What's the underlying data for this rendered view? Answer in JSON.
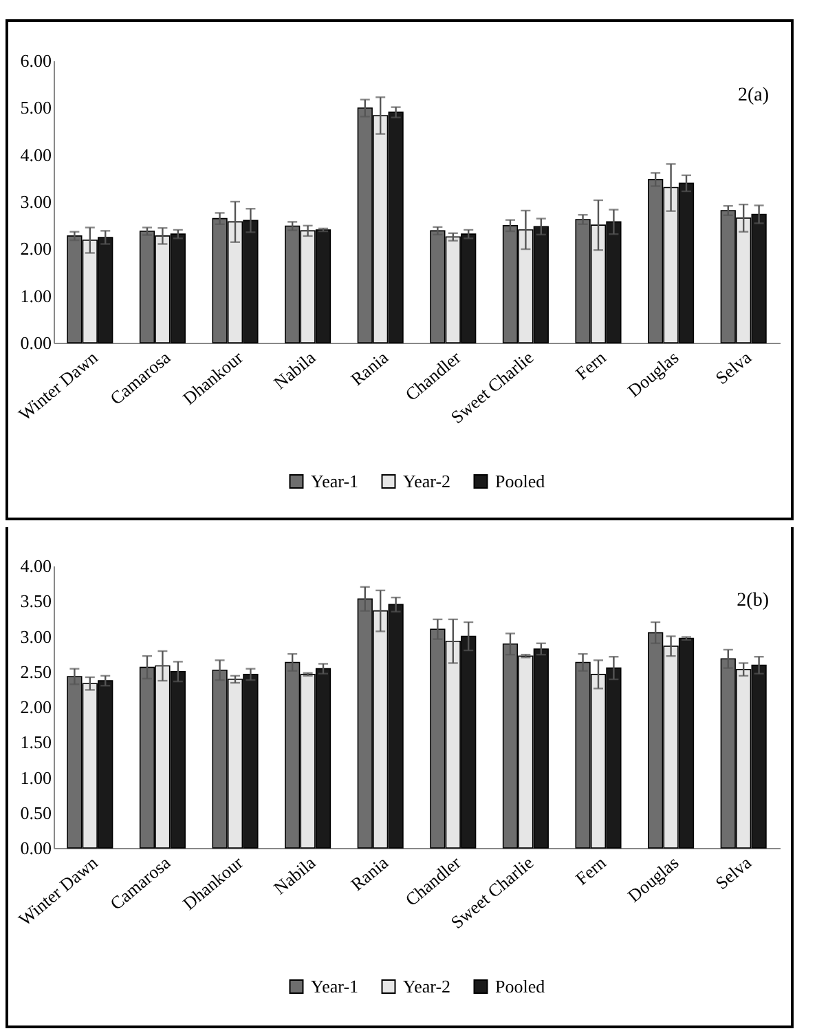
{
  "chart_data": [
    {
      "type": "bar",
      "annotations": [
        "2(a)"
      ],
      "categories": [
        "Winter Dawn",
        "Camarosa",
        "Dhankour",
        "Nabila",
        "Rania",
        "Chandler",
        "Sweet Charlie",
        "Fern",
        "Douglas",
        "Selva"
      ],
      "series": [
        {
          "name": "Year-1",
          "color": "#6e6e6e",
          "values": [
            2.27,
            2.37,
            2.64,
            2.48,
            4.99,
            2.38,
            2.49,
            2.62,
            3.47,
            2.81
          ],
          "errors": [
            0.09,
            0.08,
            0.12,
            0.09,
            0.18,
            0.08,
            0.12,
            0.1,
            0.14,
            0.1
          ]
        },
        {
          "name": "Year-2",
          "color": "#e6e6e6",
          "values": [
            2.18,
            2.27,
            2.57,
            2.38,
            4.83,
            2.25,
            2.4,
            2.5,
            3.3,
            2.65
          ],
          "errors": [
            0.27,
            0.17,
            0.43,
            0.11,
            0.39,
            0.08,
            0.41,
            0.53,
            0.5,
            0.29
          ]
        },
        {
          "name": "Pooled",
          "color": "#1a1a1a",
          "values": [
            2.24,
            2.31,
            2.6,
            2.4,
            4.9,
            2.31,
            2.47,
            2.57,
            3.39,
            2.73
          ],
          "errors": [
            0.14,
            0.09,
            0.25,
            0.03,
            0.11,
            0.09,
            0.17,
            0.26,
            0.17,
            0.19
          ]
        }
      ],
      "ylim": [
        0,
        6
      ],
      "yticks": [
        {
          "value": 0,
          "label": "0.00"
        },
        {
          "value": 1,
          "label": "1.00"
        },
        {
          "value": 2,
          "label": "2.00"
        },
        {
          "value": 3,
          "label": "3.00"
        },
        {
          "value": 4,
          "label": "4.00"
        },
        {
          "value": 5,
          "label": "5.00"
        },
        {
          "value": 6,
          "label": "6.00"
        }
      ],
      "legend": "bottom"
    },
    {
      "type": "bar",
      "annotations": [
        "2(b)"
      ],
      "categories": [
        "Winter Dawn",
        "Camarosa",
        "Dhankour",
        "Nabila",
        "Rania",
        "Chandler",
        "Sweet Charlie",
        "Fern",
        "Douglas",
        "Selva"
      ],
      "series": [
        {
          "name": "Year-1",
          "color": "#6e6e6e",
          "values": [
            2.43,
            2.56,
            2.52,
            2.63,
            3.53,
            3.1,
            2.89,
            2.63,
            3.05,
            2.68
          ],
          "errors": [
            0.11,
            0.16,
            0.14,
            0.12,
            0.17,
            0.14,
            0.15,
            0.12,
            0.15,
            0.13
          ]
        },
        {
          "name": "Year-2",
          "color": "#e6e6e6",
          "values": [
            2.33,
            2.58,
            2.39,
            2.46,
            3.36,
            2.93,
            2.72,
            2.46,
            2.86,
            2.53
          ],
          "errors": [
            0.09,
            0.21,
            0.05,
            0.02,
            0.29,
            0.31,
            0.02,
            0.2,
            0.14,
            0.09
          ]
        },
        {
          "name": "Pooled",
          "color": "#1a1a1a",
          "values": [
            2.37,
            2.5,
            2.46,
            2.54,
            3.45,
            3.0,
            2.82,
            2.55,
            2.97,
            2.59
          ],
          "errors": [
            0.07,
            0.14,
            0.08,
            0.07,
            0.1,
            0.2,
            0.08,
            0.16,
            0.02,
            0.12
          ]
        }
      ],
      "ylim": [
        0,
        4
      ],
      "yticks": [
        {
          "value": 0,
          "label": "0.00"
        },
        {
          "value": 0.5,
          "label": "0.50"
        },
        {
          "value": 1,
          "label": "1.00"
        },
        {
          "value": 1.5,
          "label": "1.50"
        },
        {
          "value": 2,
          "label": "2.00"
        },
        {
          "value": 2.5,
          "label": "2.50"
        },
        {
          "value": 3,
          "label": "3.00"
        },
        {
          "value": 3.5,
          "label": "3.50"
        },
        {
          "value": 4,
          "label": "4.00"
        }
      ],
      "legend": "bottom"
    }
  ]
}
